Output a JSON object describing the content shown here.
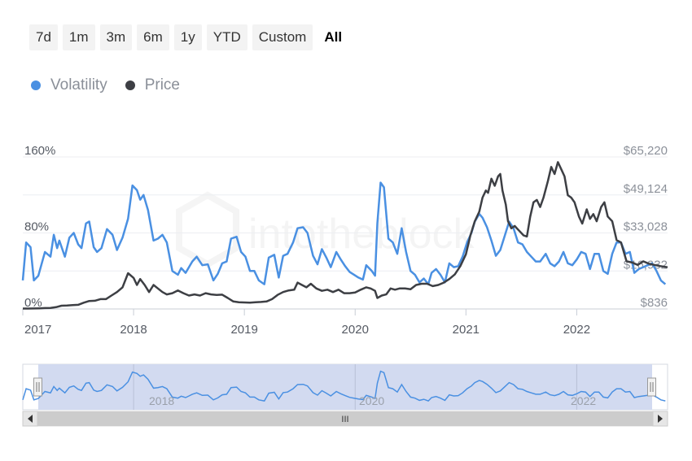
{
  "range_selector": {
    "buttons": [
      "7d",
      "1m",
      "3m",
      "6m",
      "1y",
      "YTD",
      "Custom",
      "All"
    ],
    "selected": "All"
  },
  "legend": [
    {
      "label": "Volatility",
      "color": "#4a90e2"
    },
    {
      "label": "Price",
      "color": "#3d3f44"
    }
  ],
  "navigator": {
    "labels": [
      "2018",
      "2020",
      "2022"
    ],
    "scroll_grip": "III"
  },
  "chart_data": {
    "type": "line",
    "title": "",
    "grid": true,
    "legend_position": "top-left",
    "x_labels": [
      "2017",
      "2018",
      "2019",
      "2020",
      "2021",
      "2022"
    ],
    "xlim": [
      2017.0,
      2022.82
    ],
    "left_axis": {
      "labels": [
        "160%",
        "80%",
        "0%"
      ],
      "range": [
        0,
        160
      ],
      "unit": "%"
    },
    "right_axis": {
      "labels": [
        "$65,220",
        "$49,124",
        "$33,028",
        "$16,932",
        "$836"
      ],
      "range": [
        836,
        65220
      ],
      "unit": "USD"
    },
    "series": [
      {
        "name": "Volatility",
        "axis": "left",
        "color": "#4a90e2",
        "points": [
          [
            2017.0,
            30
          ],
          [
            2017.03,
            70
          ],
          [
            2017.07,
            65
          ],
          [
            2017.1,
            30
          ],
          [
            2017.14,
            35
          ],
          [
            2017.2,
            60
          ],
          [
            2017.25,
            55
          ],
          [
            2017.28,
            78
          ],
          [
            2017.31,
            64
          ],
          [
            2017.33,
            72
          ],
          [
            2017.38,
            55
          ],
          [
            2017.42,
            75
          ],
          [
            2017.46,
            80
          ],
          [
            2017.5,
            68
          ],
          [
            2017.53,
            64
          ],
          [
            2017.57,
            90
          ],
          [
            2017.6,
            92
          ],
          [
            2017.64,
            65
          ],
          [
            2017.67,
            60
          ],
          [
            2017.71,
            64
          ],
          [
            2017.76,
            84
          ],
          [
            2017.81,
            78
          ],
          [
            2017.85,
            62
          ],
          [
            2017.9,
            75
          ],
          [
            2017.95,
            95
          ],
          [
            2017.99,
            130
          ],
          [
            2018.03,
            125
          ],
          [
            2018.06,
            115
          ],
          [
            2018.09,
            120
          ],
          [
            2018.13,
            104
          ],
          [
            2018.18,
            72
          ],
          [
            2018.22,
            74
          ],
          [
            2018.26,
            78
          ],
          [
            2018.3,
            70
          ],
          [
            2018.35,
            40
          ],
          [
            2018.4,
            36
          ],
          [
            2018.43,
            43
          ],
          [
            2018.47,
            38
          ],
          [
            2018.5,
            44
          ],
          [
            2018.53,
            50
          ],
          [
            2018.57,
            55
          ],
          [
            2018.62,
            46
          ],
          [
            2018.67,
            47
          ],
          [
            2018.72,
            30
          ],
          [
            2018.76,
            37
          ],
          [
            2018.8,
            48
          ],
          [
            2018.84,
            50
          ],
          [
            2018.88,
            74
          ],
          [
            2018.93,
            76
          ],
          [
            2018.97,
            60
          ],
          [
            2019.01,
            55
          ],
          [
            2019.05,
            40
          ],
          [
            2019.09,
            40
          ],
          [
            2019.13,
            30
          ],
          [
            2019.18,
            26
          ],
          [
            2019.22,
            54
          ],
          [
            2019.27,
            57
          ],
          [
            2019.31,
            33
          ],
          [
            2019.35,
            56
          ],
          [
            2019.39,
            58
          ],
          [
            2019.44,
            70
          ],
          [
            2019.48,
            85
          ],
          [
            2019.53,
            86
          ],
          [
            2019.57,
            80
          ],
          [
            2019.62,
            56
          ],
          [
            2019.66,
            47
          ],
          [
            2019.7,
            63
          ],
          [
            2019.74,
            54
          ],
          [
            2019.78,
            44
          ],
          [
            2019.83,
            60
          ],
          [
            2019.87,
            52
          ],
          [
            2019.91,
            45
          ],
          [
            2019.95,
            39
          ],
          [
            2019.99,
            36
          ],
          [
            2020.03,
            33
          ],
          [
            2020.07,
            31
          ],
          [
            2020.1,
            46
          ],
          [
            2020.15,
            40
          ],
          [
            2020.18,
            35
          ],
          [
            2020.2,
            90
          ],
          [
            2020.23,
            133
          ],
          [
            2020.26,
            128
          ],
          [
            2020.3,
            74
          ],
          [
            2020.34,
            70
          ],
          [
            2020.38,
            58
          ],
          [
            2020.42,
            85
          ],
          [
            2020.46,
            60
          ],
          [
            2020.5,
            40
          ],
          [
            2020.54,
            36
          ],
          [
            2020.58,
            28
          ],
          [
            2020.62,
            32
          ],
          [
            2020.66,
            26
          ],
          [
            2020.69,
            38
          ],
          [
            2020.73,
            42
          ],
          [
            2020.77,
            36
          ],
          [
            2020.81,
            28
          ],
          [
            2020.85,
            48
          ],
          [
            2020.89,
            44
          ],
          [
            2020.93,
            45
          ],
          [
            2020.97,
            55
          ],
          [
            2021.01,
            70
          ],
          [
            2021.05,
            80
          ],
          [
            2021.08,
            92
          ],
          [
            2021.12,
            100
          ],
          [
            2021.15,
            96
          ],
          [
            2021.19,
            86
          ],
          [
            2021.23,
            72
          ],
          [
            2021.27,
            56
          ],
          [
            2021.31,
            62
          ],
          [
            2021.35,
            77
          ],
          [
            2021.39,
            92
          ],
          [
            2021.43,
            85
          ],
          [
            2021.47,
            70
          ],
          [
            2021.51,
            68
          ],
          [
            2021.55,
            60
          ],
          [
            2021.59,
            55
          ],
          [
            2021.63,
            50
          ],
          [
            2021.67,
            50
          ],
          [
            2021.72,
            58
          ],
          [
            2021.76,
            48
          ],
          [
            2021.8,
            45
          ],
          [
            2021.84,
            50
          ],
          [
            2021.88,
            60
          ],
          [
            2021.92,
            48
          ],
          [
            2021.96,
            46
          ],
          [
            2022.0,
            52
          ],
          [
            2022.04,
            60
          ],
          [
            2022.08,
            58
          ],
          [
            2022.12,
            42
          ],
          [
            2022.16,
            58
          ],
          [
            2022.2,
            58
          ],
          [
            2022.24,
            40
          ],
          [
            2022.28,
            37
          ],
          [
            2022.32,
            58
          ],
          [
            2022.36,
            70
          ],
          [
            2022.4,
            70
          ],
          [
            2022.44,
            58
          ],
          [
            2022.48,
            60
          ],
          [
            2022.52,
            38
          ],
          [
            2022.56,
            42
          ],
          [
            2022.6,
            44
          ],
          [
            2022.64,
            46
          ],
          [
            2022.68,
            48
          ],
          [
            2022.72,
            40
          ],
          [
            2022.76,
            30
          ],
          [
            2022.8,
            26
          ]
        ]
      },
      {
        "name": "Price",
        "axis": "right",
        "color": "#3d3f44",
        "points": [
          [
            2017.0,
            1000
          ],
          [
            2017.05,
            1000
          ],
          [
            2017.1,
            1050
          ],
          [
            2017.15,
            1100
          ],
          [
            2017.2,
            1200
          ],
          [
            2017.25,
            1300
          ],
          [
            2017.3,
            1600
          ],
          [
            2017.35,
            2200
          ],
          [
            2017.4,
            2300
          ],
          [
            2017.45,
            2500
          ],
          [
            2017.5,
            2600
          ],
          [
            2017.55,
            3500
          ],
          [
            2017.6,
            4200
          ],
          [
            2017.65,
            4300
          ],
          [
            2017.7,
            5000
          ],
          [
            2017.75,
            5000
          ],
          [
            2017.8,
            6500
          ],
          [
            2017.85,
            8000
          ],
          [
            2017.9,
            10000
          ],
          [
            2017.95,
            16000
          ],
          [
            2018.0,
            14000
          ],
          [
            2018.03,
            11000
          ],
          [
            2018.06,
            13500
          ],
          [
            2018.1,
            11000
          ],
          [
            2018.14,
            8000
          ],
          [
            2018.18,
            11000
          ],
          [
            2018.22,
            9500
          ],
          [
            2018.26,
            8000
          ],
          [
            2018.3,
            7000
          ],
          [
            2018.35,
            7500
          ],
          [
            2018.4,
            8700
          ],
          [
            2018.45,
            7500
          ],
          [
            2018.5,
            6500
          ],
          [
            2018.55,
            7000
          ],
          [
            2018.6,
            6500
          ],
          [
            2018.65,
            7500
          ],
          [
            2018.7,
            7000
          ],
          [
            2018.75,
            6800
          ],
          [
            2018.8,
            6900
          ],
          [
            2018.85,
            5500
          ],
          [
            2018.9,
            4000
          ],
          [
            2018.95,
            3700
          ],
          [
            2019.0,
            3600
          ],
          [
            2019.05,
            3500
          ],
          [
            2019.1,
            3700
          ],
          [
            2019.15,
            3800
          ],
          [
            2019.2,
            4000
          ],
          [
            2019.25,
            5000
          ],
          [
            2019.3,
            6800
          ],
          [
            2019.35,
            8000
          ],
          [
            2019.4,
            8700
          ],
          [
            2019.45,
            9000
          ],
          [
            2019.48,
            12000
          ],
          [
            2019.52,
            11000
          ],
          [
            2019.56,
            10000
          ],
          [
            2019.6,
            11500
          ],
          [
            2019.65,
            9500
          ],
          [
            2019.7,
            8500
          ],
          [
            2019.75,
            9000
          ],
          [
            2019.8,
            8000
          ],
          [
            2019.85,
            9000
          ],
          [
            2019.9,
            7500
          ],
          [
            2019.95,
            7500
          ],
          [
            2020.0,
            7800
          ],
          [
            2020.05,
            9000
          ],
          [
            2020.1,
            10000
          ],
          [
            2020.14,
            9500
          ],
          [
            2020.18,
            8500
          ],
          [
            2020.2,
            5500
          ],
          [
            2020.24,
            6500
          ],
          [
            2020.28,
            7000
          ],
          [
            2020.32,
            9500
          ],
          [
            2020.36,
            9000
          ],
          [
            2020.4,
            9500
          ],
          [
            2020.45,
            9500
          ],
          [
            2020.5,
            9200
          ],
          [
            2020.55,
            11000
          ],
          [
            2020.6,
            11500
          ],
          [
            2020.65,
            11500
          ],
          [
            2020.7,
            10500
          ],
          [
            2020.75,
            11000
          ],
          [
            2020.8,
            12000
          ],
          [
            2020.85,
            13500
          ],
          [
            2020.9,
            15500
          ],
          [
            2020.95,
            19000
          ],
          [
            2021.0,
            24000
          ],
          [
            2021.04,
            32000
          ],
          [
            2021.08,
            38000
          ],
          [
            2021.12,
            42000
          ],
          [
            2021.15,
            48000
          ],
          [
            2021.18,
            51000
          ],
          [
            2021.2,
            50000
          ],
          [
            2021.23,
            56000
          ],
          [
            2021.26,
            53000
          ],
          [
            2021.29,
            57000
          ],
          [
            2021.31,
            58000
          ],
          [
            2021.33,
            51000
          ],
          [
            2021.36,
            45000
          ],
          [
            2021.38,
            38000
          ],
          [
            2021.41,
            35000
          ],
          [
            2021.44,
            36000
          ],
          [
            2021.48,
            34000
          ],
          [
            2021.52,
            32000
          ],
          [
            2021.55,
            31500
          ],
          [
            2021.58,
            40000
          ],
          [
            2021.61,
            46000
          ],
          [
            2021.64,
            47000
          ],
          [
            2021.67,
            44000
          ],
          [
            2021.7,
            48000
          ],
          [
            2021.74,
            55000
          ],
          [
            2021.77,
            61000
          ],
          [
            2021.8,
            58000
          ],
          [
            2021.83,
            63000
          ],
          [
            2021.86,
            60000
          ],
          [
            2021.89,
            57000
          ],
          [
            2021.92,
            49000
          ],
          [
            2021.95,
            48000
          ],
          [
            2021.98,
            46000
          ],
          [
            2022.02,
            40000
          ],
          [
            2022.05,
            37000
          ],
          [
            2022.09,
            43000
          ],
          [
            2022.12,
            39000
          ],
          [
            2022.15,
            41000
          ],
          [
            2022.18,
            38000
          ],
          [
            2022.22,
            44000
          ],
          [
            2022.25,
            46000
          ],
          [
            2022.28,
            40000
          ],
          [
            2022.32,
            38000
          ],
          [
            2022.36,
            30000
          ],
          [
            2022.4,
            29000
          ],
          [
            2022.45,
            21000
          ],
          [
            2022.5,
            20500
          ],
          [
            2022.55,
            19500
          ],
          [
            2022.6,
            21000
          ],
          [
            2022.65,
            20000
          ],
          [
            2022.7,
            19500
          ],
          [
            2022.75,
            19000
          ],
          [
            2022.82,
            18500
          ]
        ]
      }
    ]
  }
}
